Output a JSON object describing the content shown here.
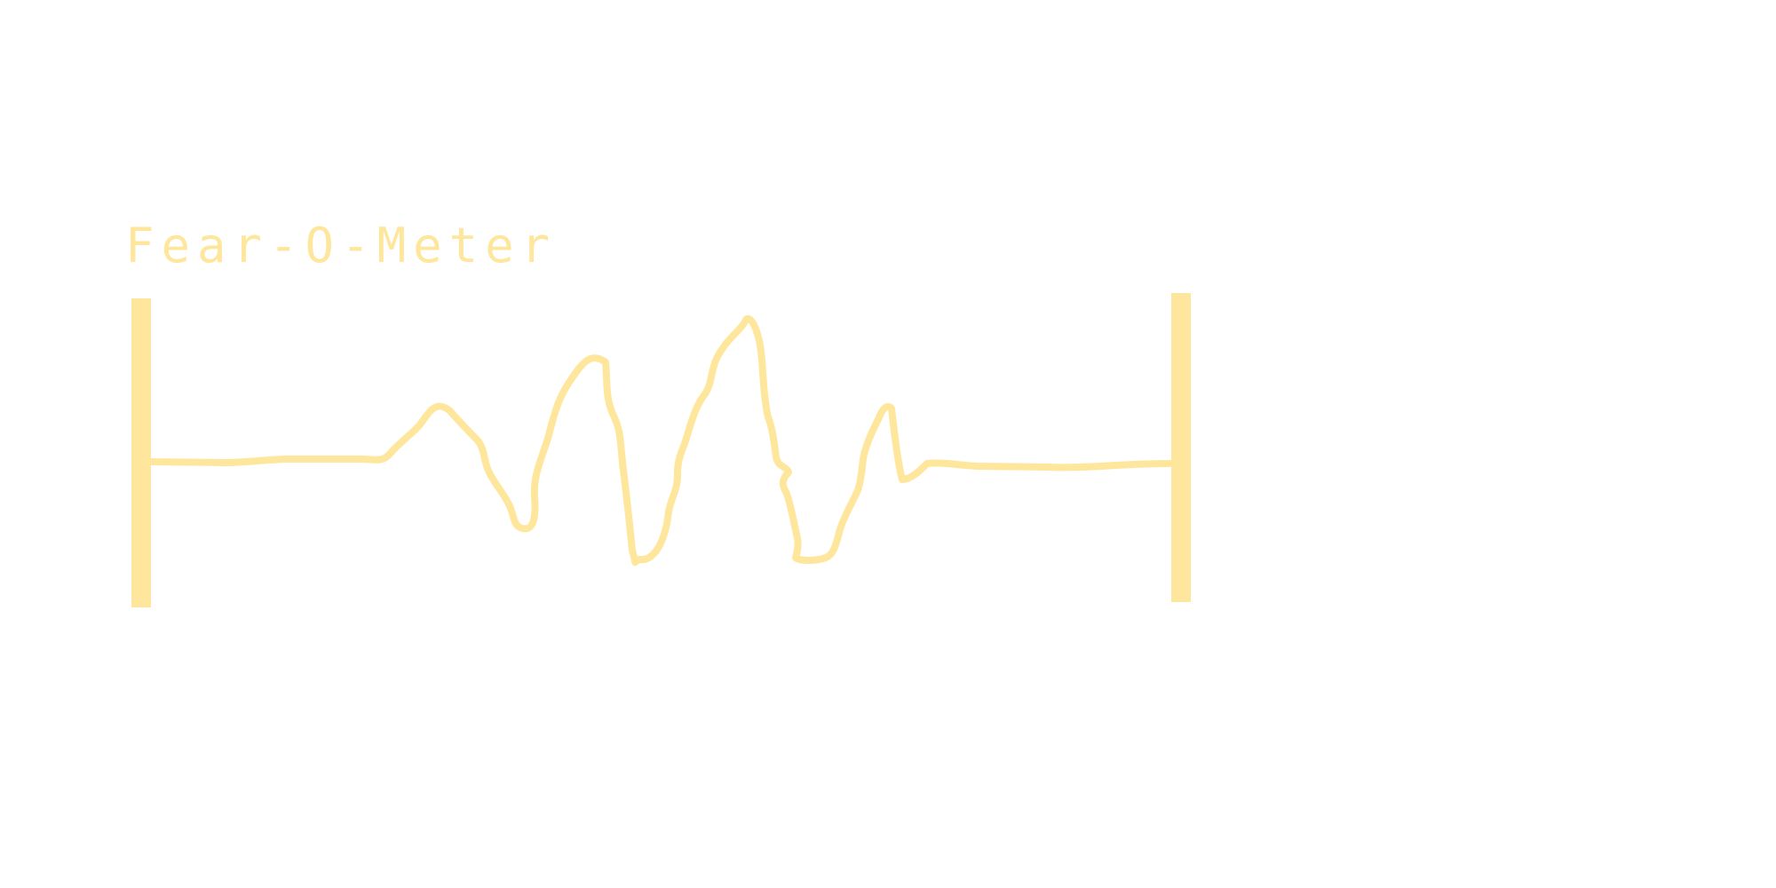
{
  "title": "Fear-O-Meter",
  "colors": {
    "accent": "#fee79c"
  },
  "icons": {
    "left_marker": "vertical-bar",
    "right_marker": "vertical-bar",
    "signal": "waveform-line"
  }
}
